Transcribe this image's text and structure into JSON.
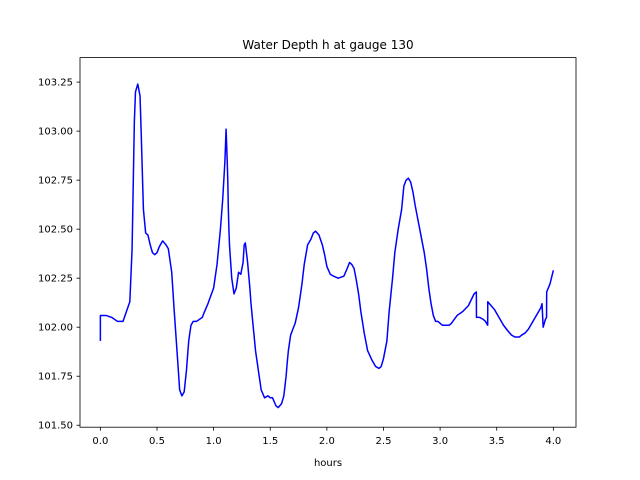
{
  "chart_data": {
    "type": "line",
    "title": "Water Depth h at gauge 130",
    "xlabel": "hours",
    "ylabel": "",
    "xlim": [
      -0.18,
      4.2
    ],
    "ylim": [
      101.49,
      103.375
    ],
    "xticks": [
      0.0,
      0.5,
      1.0,
      1.5,
      2.0,
      2.5,
      3.0,
      3.5,
      4.0
    ],
    "xtick_labels": [
      "0.0",
      "0.5",
      "1.0",
      "1.5",
      "2.0",
      "2.5",
      "3.0",
      "3.5",
      "4.0"
    ],
    "yticks": [
      101.5,
      101.75,
      102.0,
      102.25,
      102.5,
      102.75,
      103.0,
      103.25
    ],
    "ytick_labels": [
      "101.50",
      "101.75",
      "102.00",
      "102.25",
      "102.50",
      "102.75",
      "103.00",
      "103.25"
    ],
    "grid": false,
    "series": [
      {
        "color": "#0000ff",
        "x": [
          0.0,
          0.0,
          0.05,
          0.1,
          0.15,
          0.2,
          0.23,
          0.26,
          0.28,
          0.3,
          0.31,
          0.33,
          0.35,
          0.36,
          0.38,
          0.4,
          0.42,
          0.44,
          0.46,
          0.48,
          0.5,
          0.52,
          0.55,
          0.58,
          0.6,
          0.63,
          0.65,
          0.68,
          0.7,
          0.72,
          0.74,
          0.76,
          0.78,
          0.8,
          0.82,
          0.85,
          0.9,
          0.92,
          0.95,
          1.0,
          1.03,
          1.06,
          1.08,
          1.1,
          1.11,
          1.12,
          1.125,
          1.13,
          1.135,
          1.14,
          1.16,
          1.18,
          1.2,
          1.22,
          1.24,
          1.26,
          1.27,
          1.28,
          1.3,
          1.32,
          1.33,
          1.35,
          1.37,
          1.4,
          1.42,
          1.45,
          1.48,
          1.5,
          1.52,
          1.55,
          1.57,
          1.6,
          1.62,
          1.63,
          1.64,
          1.65,
          1.66,
          1.67,
          1.68,
          1.7,
          1.72,
          1.75,
          1.78,
          1.8,
          1.83,
          1.86,
          1.88,
          1.9,
          1.93,
          1.96,
          1.98,
          2.0,
          2.03,
          2.06,
          2.1,
          2.15,
          2.18,
          2.2,
          2.22,
          2.24,
          2.26,
          2.28,
          2.3,
          2.33,
          2.36,
          2.4,
          2.43,
          2.46,
          2.48,
          2.5,
          2.53,
          2.55,
          2.58,
          2.6,
          2.63,
          2.66,
          2.68,
          2.7,
          2.72,
          2.74,
          2.76,
          2.78,
          2.8,
          2.83,
          2.86,
          2.88,
          2.9,
          2.92,
          2.94,
          2.96,
          2.98,
          3.0,
          3.02,
          3.05,
          3.08,
          3.1,
          3.15,
          3.2,
          3.25,
          3.3,
          3.32,
          3.321,
          3.35,
          3.38,
          3.4,
          3.42,
          3.421,
          3.45,
          3.48,
          3.5,
          3.53,
          3.56,
          3.6,
          3.63,
          3.66,
          3.7,
          3.72,
          3.75,
          3.78,
          3.8,
          3.83,
          3.86,
          3.89,
          3.9,
          3.91,
          3.92,
          3.93,
          3.94,
          3.941,
          3.97,
          4.0
        ],
        "y": [
          101.93,
          102.06,
          102.06,
          102.05,
          102.03,
          102.03,
          102.08,
          102.13,
          102.4,
          103.05,
          103.2,
          103.24,
          103.18,
          103.0,
          102.6,
          102.48,
          102.47,
          102.42,
          102.38,
          102.37,
          102.38,
          102.41,
          102.44,
          102.42,
          102.4,
          102.28,
          102.1,
          101.85,
          101.68,
          101.65,
          101.67,
          101.78,
          101.93,
          102.01,
          102.03,
          102.03,
          102.05,
          102.08,
          102.12,
          102.2,
          102.32,
          102.5,
          102.65,
          102.85,
          103.01,
          102.85,
          102.75,
          102.6,
          102.5,
          102.42,
          102.25,
          102.17,
          102.2,
          102.28,
          102.27,
          102.33,
          102.42,
          102.43,
          102.33,
          102.2,
          102.12,
          102.0,
          101.88,
          101.76,
          101.68,
          101.64,
          101.65,
          101.64,
          101.64,
          101.6,
          101.59,
          101.61,
          101.65,
          101.7,
          101.75,
          101.82,
          101.88,
          101.92,
          101.96,
          101.99,
          102.02,
          102.1,
          102.22,
          102.32,
          102.42,
          102.45,
          102.48,
          102.49,
          102.47,
          102.42,
          102.37,
          102.31,
          102.27,
          102.26,
          102.25,
          102.26,
          102.3,
          102.33,
          102.32,
          102.3,
          102.24,
          102.17,
          102.08,
          101.97,
          101.88,
          101.83,
          101.8,
          101.79,
          101.8,
          101.84,
          101.93,
          102.08,
          102.25,
          102.38,
          102.5,
          102.6,
          102.72,
          102.75,
          102.76,
          102.74,
          102.69,
          102.62,
          102.56,
          102.47,
          102.38,
          102.3,
          102.2,
          102.12,
          102.06,
          102.03,
          102.03,
          102.02,
          102.01,
          102.01,
          102.01,
          102.02,
          102.06,
          102.08,
          102.11,
          102.17,
          102.18,
          102.05,
          102.05,
          102.04,
          102.03,
          102.01,
          102.13,
          102.11,
          102.09,
          102.07,
          102.04,
          102.01,
          101.98,
          101.96,
          101.95,
          101.95,
          101.96,
          101.97,
          101.99,
          102.01,
          102.04,
          102.07,
          102.1,
          102.12,
          102.0,
          102.02,
          102.04,
          102.05,
          102.18,
          102.22,
          102.29
        ]
      }
    ]
  }
}
